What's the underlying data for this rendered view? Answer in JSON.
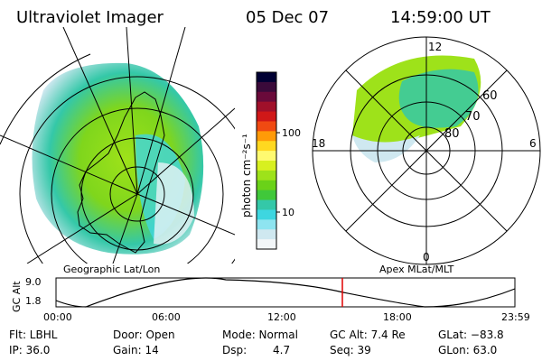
{
  "header": {
    "instrument": "Ultraviolet Imager",
    "date": "05 Dec 07",
    "time": "14:59:00 UT"
  },
  "colorbar": {
    "unit_label": "photon cm⁻²s⁻¹",
    "ticks": [
      "100",
      "10"
    ],
    "scale": "log",
    "colors": [
      "#000033",
      "#3a0a3a",
      "#6a0a3a",
      "#a0102a",
      "#d01818",
      "#f04a12",
      "#ff9a08",
      "#ffd820",
      "#fffa70",
      "#d8f020",
      "#9ee21a",
      "#6ad218",
      "#40c83a",
      "#34c8a8",
      "#3ed6e0",
      "#8ee4f0",
      "#cfe8f0",
      "#f2f6f8"
    ]
  },
  "left_map": {
    "caption": "Geographic Lat/Lon",
    "projection": "geographic"
  },
  "right_map": {
    "caption": "Apex  MLat/MLT",
    "mlt_labels": {
      "top": "12",
      "left": "18",
      "right": "6",
      "bottom": "0"
    },
    "lat_labels": [
      "60",
      "70",
      "80"
    ]
  },
  "altitude_plot": {
    "ylabel": "GC Alt",
    "ytick_top": "9.0",
    "ytick_bottom": "1.8",
    "xticks": [
      "00:00",
      "06:00",
      "12:00",
      "18:00",
      "23:59"
    ],
    "marker_color": "#e00000",
    "current_time_fraction": 0.624
  },
  "info": {
    "filter": "Flt: LBHL",
    "ip": "IP: 36.0",
    "door": "Door: Open",
    "gain": "Gain: 14",
    "mode": "Mode: Normal",
    "dsp": "Dsp:",
    "dsp_value": "4.7",
    "gc_alt": "GC Alt: 7.4 Re",
    "seq": "Seq: 39",
    "glat": "GLat: −83.8",
    "glon": "GLon:  63.0"
  }
}
